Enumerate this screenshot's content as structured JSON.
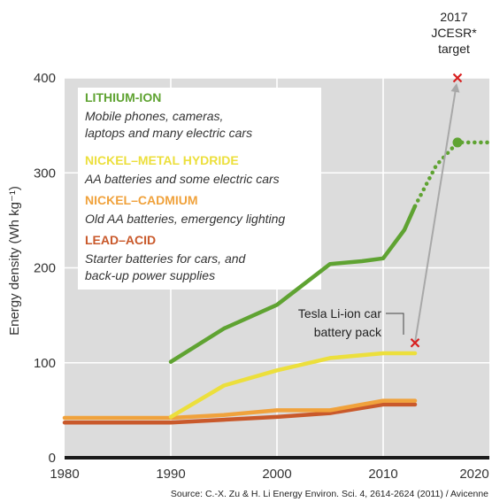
{
  "chart_data": {
    "type": "line",
    "ylabel": "Energy density (Wh kg⁻¹)",
    "xlim": [
      1980,
      2020
    ],
    "ylim": [
      0,
      400
    ],
    "x_ticks": [
      "1980",
      "1990",
      "2000",
      "2010",
      "2020"
    ],
    "y_ticks": [
      "0",
      "100",
      "200",
      "300",
      "400"
    ],
    "grid": true,
    "series": [
      {
        "name": "LITHIUM-ION",
        "description_lines": [
          "Mobile phones, cameras,",
          "laptops and many electric cars"
        ],
        "color": "#5fa332",
        "x": [
          1990,
          1995,
          2000,
          2005,
          2008,
          2010,
          2012,
          2013
        ],
        "y": [
          101,
          136,
          161,
          204,
          207,
          210,
          240,
          265
        ],
        "projection": {
          "x": [
            2013,
            2015,
            2017,
            2020
          ],
          "y": [
            265,
            308,
            332,
            332
          ],
          "marker_at": [
            2017,
            332
          ]
        }
      },
      {
        "name": "NICKEL–METAL HYDRIDE",
        "description_lines": [
          "AA batteries and some electric cars"
        ],
        "color": "#ecdf3c",
        "x": [
          1990,
          1995,
          2000,
          2005,
          2010,
          2013
        ],
        "y": [
          43,
          76,
          92,
          105,
          110,
          110
        ]
      },
      {
        "name": "NICKEL–CADMIUM",
        "description_lines": [
          "Old AA batteries, emergency lighting"
        ],
        "color": "#f0a23c",
        "x": [
          1980,
          1990,
          1995,
          2000,
          2005,
          2010,
          2013
        ],
        "y": [
          42,
          42,
          45,
          50,
          50,
          60,
          60
        ]
      },
      {
        "name": "LEAD–ACID",
        "description_lines": [
          "Starter batteries for cars, and",
          "back-up power supplies"
        ],
        "color": "#c9592b",
        "x": [
          1980,
          1990,
          1995,
          2000,
          2005,
          2010,
          2013
        ],
        "y": [
          37,
          37,
          40,
          43,
          47,
          56,
          56
        ]
      }
    ],
    "markers": [
      {
        "label_lines": [
          "Tesla Li-ion car",
          "battery pack"
        ],
        "x": 2013,
        "y": 121,
        "symbol": "x"
      },
      {
        "label_lines": [
          "2017",
          "JCESR*",
          "target"
        ],
        "x": 2017,
        "y": 400,
        "symbol": "x"
      }
    ],
    "source": "Source: C.-X. Zu & H. Li Energy Environ. Sci. 4, 2614-2624 (2011) / Avicenne"
  },
  "colors": {
    "plot_background": "#dcdcdc",
    "legend_background": "#ffffff",
    "grid": "#ffffff",
    "marker_x": "#d82020",
    "arrow": "#a8a8a8",
    "axis": "#1a1a1a"
  }
}
